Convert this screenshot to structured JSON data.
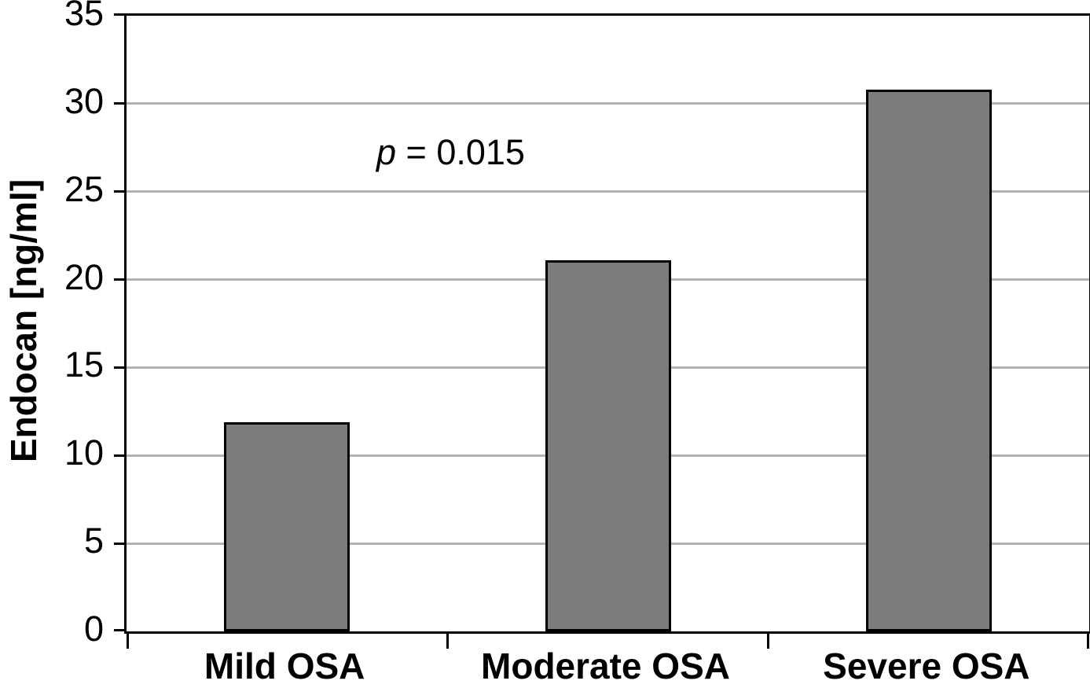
{
  "chart_data": {
    "type": "bar",
    "title": "",
    "categories": [
      "Mild OSA",
      "Moderate OSA",
      "Severe OSA"
    ],
    "values": [
      11.9,
      21.1,
      30.8
    ],
    "xlabel": "",
    "ylabel": "Endocan [ng/ml]",
    "ylim": [
      0,
      35
    ],
    "yticks": [
      0,
      5,
      10,
      15,
      20,
      25,
      30,
      35
    ],
    "grid": true,
    "legend": false,
    "annotation": {
      "italic_part": "p",
      "rest": " = 0.015",
      "full_text": "p = 0.015"
    },
    "colors": {
      "bar_fill": "#7c7c7c",
      "bar_border": "#000000",
      "gridline": "#b3b3b3",
      "axis": "#000000",
      "background": "#ffffff",
      "text": "#000000"
    }
  }
}
